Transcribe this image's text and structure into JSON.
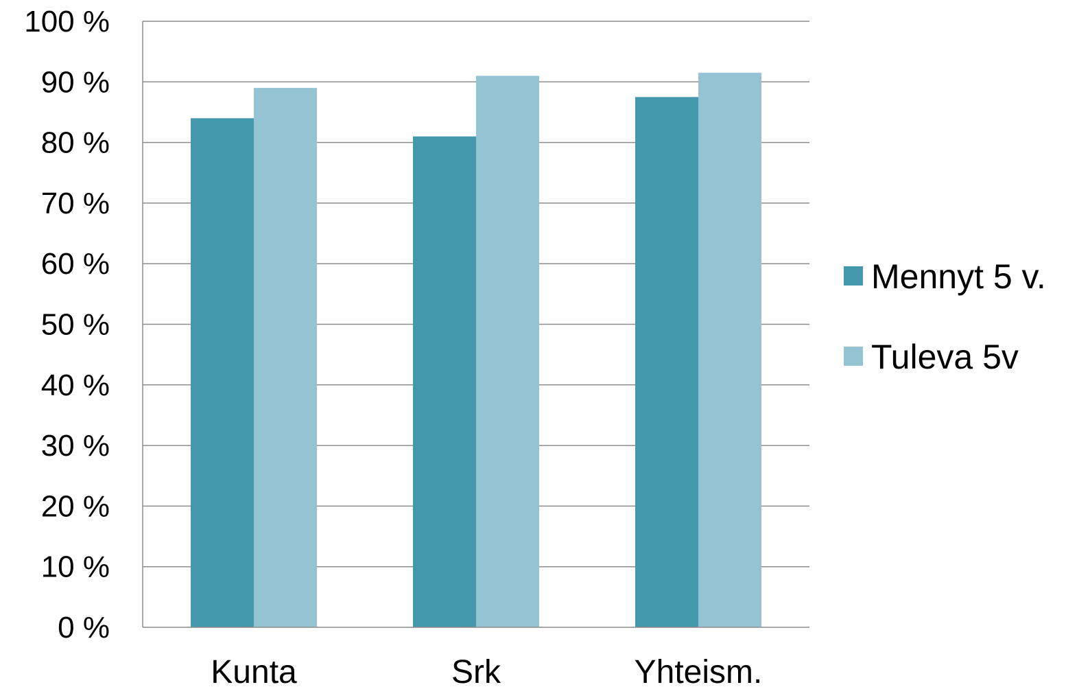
{
  "chart_data": {
    "type": "bar",
    "categories": [
      "Kunta",
      "Srk",
      "Yhteism."
    ],
    "series": [
      {
        "name": "Mennyt 5 v.",
        "values": [
          84,
          81,
          87.5
        ],
        "color": "#4398ae"
      },
      {
        "name": "Tuleva 5v",
        "values": [
          89,
          91,
          91.5
        ],
        "color": "#94c3d4"
      }
    ],
    "y_ticks": [
      "0 %",
      "10 %",
      "20 %",
      "30 %",
      "40 %",
      "50 %",
      "60 %",
      "70 %",
      "80 %",
      "90 %",
      "100 %"
    ],
    "ylim": [
      0,
      100
    ],
    "y_unit": "%",
    "grid": true,
    "legend_position": "right",
    "gridline_color": "#8c8c8c"
  }
}
